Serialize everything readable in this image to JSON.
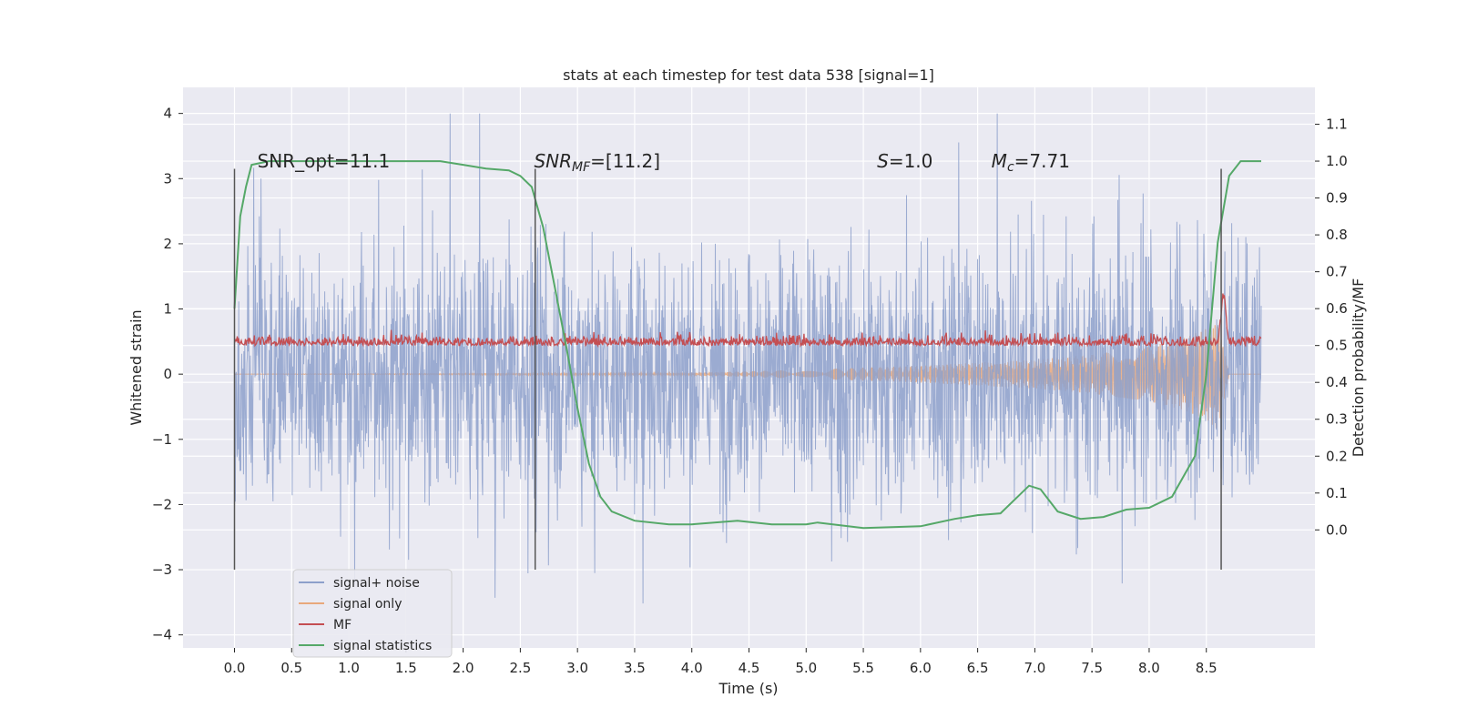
{
  "chart_data": {
    "type": "line",
    "title": "stats at each timestep for test data 538 [signal=1]",
    "xlabel": "Time (s)",
    "ylabel": "Whitened strain",
    "ylabel_right": "Detection probability/MF",
    "xlim": [
      -0.45,
      9.45
    ],
    "ylim": [
      -4.2,
      4.4
    ],
    "ylim_right": [
      -0.32,
      1.2
    ],
    "xticks": [
      0.0,
      0.5,
      1.0,
      1.5,
      2.0,
      2.5,
      3.0,
      3.5,
      4.0,
      4.5,
      5.0,
      5.5,
      6.0,
      6.5,
      7.0,
      7.5,
      8.0,
      8.5
    ],
    "xtick_labels": [
      "0.0",
      "0.5",
      "1.0",
      "1.5",
      "2.0",
      "2.5",
      "3.0",
      "3.5",
      "4.0",
      "4.5",
      "5.0",
      "5.5",
      "6.0",
      "6.5",
      "7.0",
      "7.5",
      "8.0",
      "8.5"
    ],
    "yticks": [
      -4,
      -3,
      -2,
      -1,
      0,
      1,
      2,
      3,
      4
    ],
    "ytick_labels": [
      "−4",
      "−3",
      "−2",
      "−1",
      "0",
      "1",
      "2",
      "3",
      "4"
    ],
    "yticks_right": [
      0.0,
      0.1,
      0.2,
      0.3,
      0.4,
      0.5,
      0.6,
      0.7,
      0.8,
      0.9,
      1.0,
      1.1
    ],
    "ytick_labels_right": [
      "0.0",
      "0.1",
      "0.2",
      "0.3",
      "0.4",
      "0.5",
      "0.6",
      "0.7",
      "0.8",
      "0.9",
      "1.0",
      "1.1"
    ],
    "grid": true,
    "legend_position": "lower-left",
    "annotations": [
      {
        "text": "SNR_opt=11.1",
        "x": 0.2,
        "y": 3.17
      },
      {
        "text": "SNR_MF=[11.2]",
        "x": 2.62,
        "y": 3.17
      },
      {
        "text": "S=1.0",
        "x": 5.62,
        "y": 3.17
      },
      {
        "text": "M_c=7.71",
        "x": 6.62,
        "y": 3.17
      }
    ],
    "vlines": [
      {
        "x": 0.0,
        "ymin": -3.0,
        "ymax": 3.15
      },
      {
        "x": 2.63,
        "ymin": -3.0,
        "ymax": 3.15
      },
      {
        "x": 8.63,
        "ymin": -3.0,
        "ymax": 3.15
      }
    ],
    "series": [
      {
        "name": "signal+ noise",
        "axis": "left",
        "color": "#8da0cb",
        "description_type": "noise",
        "x_range": [
          0.0,
          8.98
        ],
        "typical_range": [
          -2.1,
          2.1
        ],
        "extreme_range": [
          -3.85,
          4.0
        ]
      },
      {
        "name": "signal only",
        "axis": "left",
        "color": "#e8a87c",
        "envelope": {
          "x": [
            0.0,
            4.0,
            5.0,
            6.0,
            7.0,
            7.5,
            8.0,
            8.3,
            8.5,
            8.6,
            8.63,
            8.7,
            8.98
          ],
          "amp": [
            0.0,
            0.02,
            0.07,
            0.13,
            0.22,
            0.3,
            0.42,
            0.55,
            0.7,
            0.85,
            0.6,
            0.0,
            0.0
          ]
        }
      },
      {
        "name": "MF",
        "axis": "right",
        "color": "#c44e52",
        "baseline": 0.5,
        "typical_range": [
          0.49,
          0.54
        ],
        "peak": {
          "x": 8.65,
          "y": 0.63
        }
      },
      {
        "name": "signal statistics",
        "axis": "right",
        "color": "#55a868",
        "x": [
          0.0,
          0.05,
          0.1,
          0.15,
          0.3,
          0.5,
          1.0,
          1.5,
          1.8,
          2.0,
          2.2,
          2.4,
          2.5,
          2.6,
          2.7,
          2.8,
          2.9,
          3.0,
          3.1,
          3.2,
          3.3,
          3.5,
          3.8,
          4.0,
          4.4,
          4.7,
          5.0,
          5.1,
          5.5,
          6.0,
          6.3,
          6.5,
          6.7,
          6.85,
          6.95,
          7.05,
          7.2,
          7.4,
          7.6,
          7.8,
          8.0,
          8.2,
          8.4,
          8.5,
          8.6,
          8.7,
          8.8,
          8.98
        ],
        "y": [
          0.6,
          0.85,
          0.93,
          0.99,
          1.0,
          1.0,
          1.0,
          1.0,
          1.0,
          0.99,
          0.98,
          0.975,
          0.96,
          0.93,
          0.82,
          0.66,
          0.5,
          0.33,
          0.18,
          0.09,
          0.05,
          0.025,
          0.015,
          0.015,
          0.025,
          0.015,
          0.015,
          0.02,
          0.005,
          0.01,
          0.03,
          0.04,
          0.045,
          0.09,
          0.12,
          0.11,
          0.05,
          0.03,
          0.035,
          0.055,
          0.06,
          0.09,
          0.2,
          0.42,
          0.78,
          0.96,
          1.0,
          1.0
        ]
      }
    ]
  }
}
